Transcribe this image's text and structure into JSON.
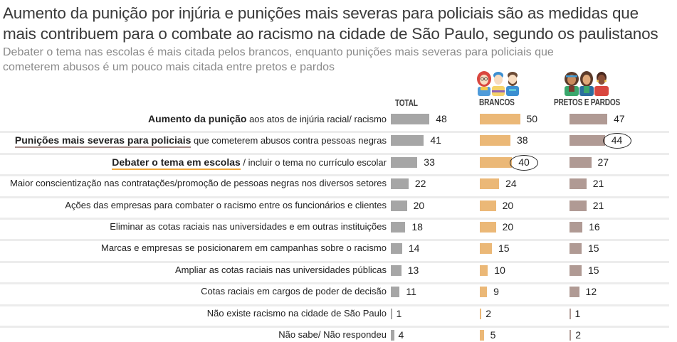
{
  "header": {
    "title": "Aumento da punição por injúria e punições mais severas para policiais são as medidas que mais contribuem para o combate ao racismo na cidade de São Paulo, segundo os paulistanos",
    "subtitle": "Debater o tema nas escolas é mais citada pelos brancos, enquanto punições mais severas para policiais que cometerem abusos é um pouco mais citada entre pretos e pardos"
  },
  "icons": {
    "brancos": "group-of-white-people-icon",
    "pretos_pardos": "group-of-black-and-brown-people-icon"
  },
  "colors": {
    "total": "#a6a6a6",
    "brancos": "#ebb877",
    "pretos_pardos": "#b09a94"
  },
  "chart_data": {
    "type": "bar",
    "orientation": "horizontal",
    "title": "Aumento da punição por injúria e punições mais severas para policiais são as medidas que mais contribuem para o combate ao racismo na cidade de São Paulo, segundo os paulistanos",
    "subtitle": "Debater o tema nas escolas é mais citada pelos brancos, enquanto punições mais severas para policiais que cometerem abusos é um pouco mais citada entre pretos e pardos",
    "unit": "%",
    "xlim": [
      0,
      50
    ],
    "categories": [
      {
        "bold": "Aumento da punição",
        "rest": " aos atos de injúria racial/ racismo",
        "underline": ""
      },
      {
        "bold": "Punições mais severas para policiais",
        "rest": " que cometerem abusos contra pessoas negras",
        "underline": "brown"
      },
      {
        "bold": "Debater o tema em escolas",
        "rest": " / incluir o tema no currículo escolar",
        "underline": "orange"
      },
      {
        "bold": "",
        "rest": "Maior conscientização nas contratações/promoção de pessoas negras nos diversos setores",
        "underline": ""
      },
      {
        "bold": "",
        "rest": "Ações das empresas para combater o racismo entre os funcionários e clientes",
        "underline": ""
      },
      {
        "bold": "",
        "rest": "Eliminar as cotas raciais nas universidades e em outras instituições",
        "underline": ""
      },
      {
        "bold": "",
        "rest": "Marcas e empresas se posicionarem em campanhas sobre o racismo",
        "underline": ""
      },
      {
        "bold": "",
        "rest": "Ampliar as cotas raciais nas universidades públicas",
        "underline": ""
      },
      {
        "bold": "",
        "rest": "Cotas raciais em cargos de poder de decisão",
        "underline": ""
      },
      {
        "bold": "",
        "rest": "Não existe racismo na cidade de São Paulo",
        "underline": ""
      },
      {
        "bold": "",
        "rest": "Não sabe/ Não respondeu",
        "underline": ""
      }
    ],
    "series": [
      {
        "name": "TOTAL",
        "key": "total",
        "values": [
          48,
          41,
          33,
          22,
          20,
          18,
          14,
          13,
          11,
          1,
          4
        ],
        "highlight": []
      },
      {
        "name": "BRANCOS",
        "key": "brancos",
        "values": [
          50,
          38,
          40,
          24,
          20,
          20,
          15,
          10,
          9,
          2,
          5
        ],
        "highlight": [
          2
        ]
      },
      {
        "name": "PRETOS E PARDOS",
        "key": "pretos_pardos",
        "values": [
          47,
          44,
          27,
          21,
          21,
          16,
          15,
          15,
          12,
          1,
          2
        ],
        "highlight": [
          1
        ]
      }
    ]
  }
}
